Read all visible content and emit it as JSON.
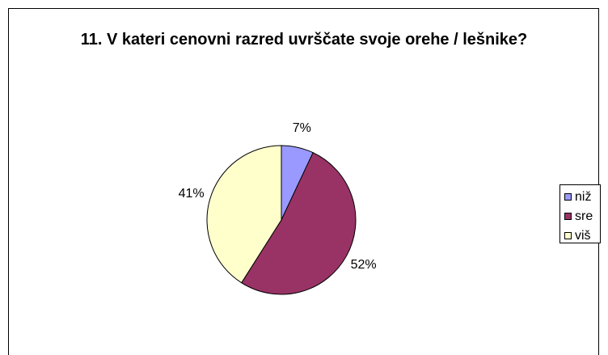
{
  "chart_data": {
    "type": "pie",
    "title": "11. V kateri cenovni razred uvrščate svoje orehe / lešnike?",
    "categories": [
      "niž",
      "sre",
      "viš"
    ],
    "values": [
      7,
      52,
      41
    ],
    "value_labels": [
      "7%",
      "52%",
      "41%"
    ],
    "colors": [
      "#9999ff",
      "#993366",
      "#ffffcc"
    ],
    "legend": "right"
  }
}
